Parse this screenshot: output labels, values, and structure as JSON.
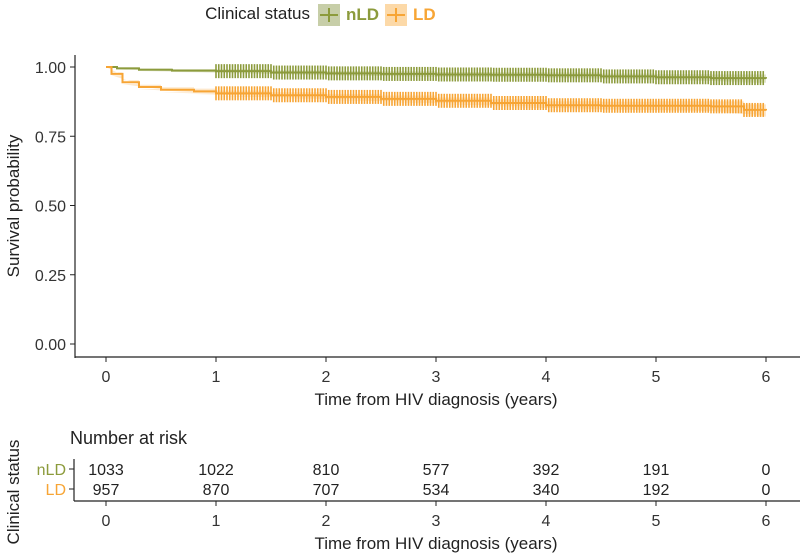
{
  "chart_data": {
    "type": "line",
    "subtype": "kaplan-meier",
    "legend": {
      "title": "Clinical status",
      "placement": "top",
      "entries": [
        "nLD",
        "LD"
      ]
    },
    "xlabel": "Time from HIV diagnosis (years)",
    "ylabel": "Survival probability",
    "xlim": [
      0,
      6
    ],
    "ylim": [
      0,
      1
    ],
    "xticks": [
      "0",
      "1",
      "2",
      "3",
      "4",
      "5",
      "6"
    ],
    "yticks": [
      "0.00",
      "0.25",
      "0.50",
      "0.75",
      "1.00"
    ],
    "series": [
      {
        "name": "nLD",
        "color": "#8c9b3c",
        "x": [
          0,
          0.1,
          0.3,
          0.6,
          1.0,
          1.5,
          2.0,
          2.5,
          3.0,
          3.5,
          4.0,
          4.5,
          5.0,
          5.5,
          6.0
        ],
        "y": [
          1.0,
          0.995,
          0.99,
          0.987,
          0.985,
          0.98,
          0.977,
          0.975,
          0.973,
          0.972,
          0.97,
          0.966,
          0.963,
          0.96,
          0.958
        ],
        "ci_halfwidth": [
          0,
          0.004,
          0.005,
          0.006,
          0.007,
          0.008,
          0.008,
          0.009,
          0.009,
          0.009,
          0.01,
          0.01,
          0.011,
          0.013,
          0.015
        ]
      },
      {
        "name": "LD",
        "color": "#f7a535",
        "x": [
          0,
          0.05,
          0.15,
          0.3,
          0.5,
          0.8,
          1.0,
          1.5,
          2.0,
          2.5,
          3.0,
          3.5,
          4.0,
          4.5,
          5.0,
          5.5,
          5.8,
          6.0
        ],
        "y": [
          1.0,
          0.975,
          0.945,
          0.928,
          0.918,
          0.912,
          0.905,
          0.898,
          0.892,
          0.885,
          0.878,
          0.87,
          0.862,
          0.86,
          0.86,
          0.858,
          0.845,
          0.843
        ],
        "ci_halfwidth": [
          0,
          0.005,
          0.007,
          0.008,
          0.009,
          0.01,
          0.01,
          0.011,
          0.011,
          0.012,
          0.012,
          0.013,
          0.014,
          0.015,
          0.016,
          0.018,
          0.02,
          0.022
        ]
      }
    ],
    "risk_table": {
      "title": "Number at risk",
      "ylabel": "Clinical status",
      "xlabel": "Time from HIV diagnosis (years)",
      "times": [
        "0",
        "1",
        "2",
        "3",
        "4",
        "5",
        "6"
      ],
      "rows": [
        {
          "name": "nLD",
          "color": "#8c9b3c",
          "values": [
            "1033",
            "1022",
            "810",
            "577",
            "392",
            "191",
            "0"
          ]
        },
        {
          "name": "LD",
          "color": "#f7a535",
          "values": [
            "957",
            "870",
            "707",
            "534",
            "340",
            "192",
            "0"
          ]
        }
      ]
    }
  }
}
